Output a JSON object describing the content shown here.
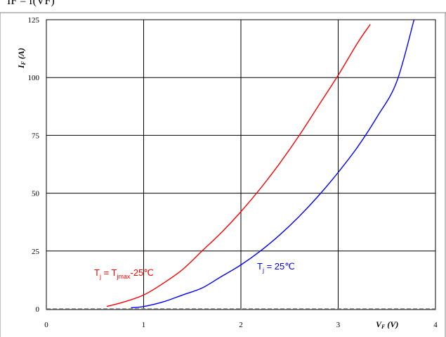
{
  "header_text": "IF = f(VF)",
  "chart_data": {
    "type": "line",
    "xlim": [
      0,
      4
    ],
    "ylim": [
      0,
      125
    ],
    "x_ticks": [
      "0",
      "1",
      "2",
      "3",
      "4"
    ],
    "y_ticks": [
      "0",
      "25",
      "50",
      "75",
      "100",
      "125"
    ],
    "xlabel": {
      "main": "V",
      "sub": "F",
      "unit": "(V)"
    },
    "ylabel": {
      "main": "I",
      "sub": "F",
      "unit": "(A)"
    },
    "grid": true,
    "series": [
      {
        "name": "Tj = Tjmax-25℃",
        "label_parts": {
          "t": "T",
          "j": "j",
          "eq": " = T",
          "jmax": "jmax",
          "rest": "-25℃"
        },
        "color": "#ff0000",
        "x": [
          0.62,
          0.8,
          1.0,
          1.2,
          1.4,
          1.6,
          1.8,
          2.0,
          2.2,
          2.4,
          2.6,
          2.8,
          3.0,
          3.2,
          3.33
        ],
        "y": [
          1,
          3,
          6,
          11,
          17,
          25,
          33,
          42,
          52,
          63,
          75,
          88,
          101,
          115,
          123
        ]
      },
      {
        "name": "Tj = 25℃",
        "label_parts": {
          "t": "T",
          "j": "j",
          "rest": " = 25℃"
        },
        "color": "#0000ff",
        "x": [
          0.87,
          1.0,
          1.2,
          1.4,
          1.6,
          1.8,
          2.0,
          2.2,
          2.4,
          2.6,
          2.8,
          3.0,
          3.2,
          3.4,
          3.6,
          3.78
        ],
        "y": [
          0.5,
          1,
          3,
          6,
          9,
          14,
          19,
          25,
          32,
          40,
          49,
          59,
          70,
          83,
          98,
          125
        ]
      }
    ]
  }
}
